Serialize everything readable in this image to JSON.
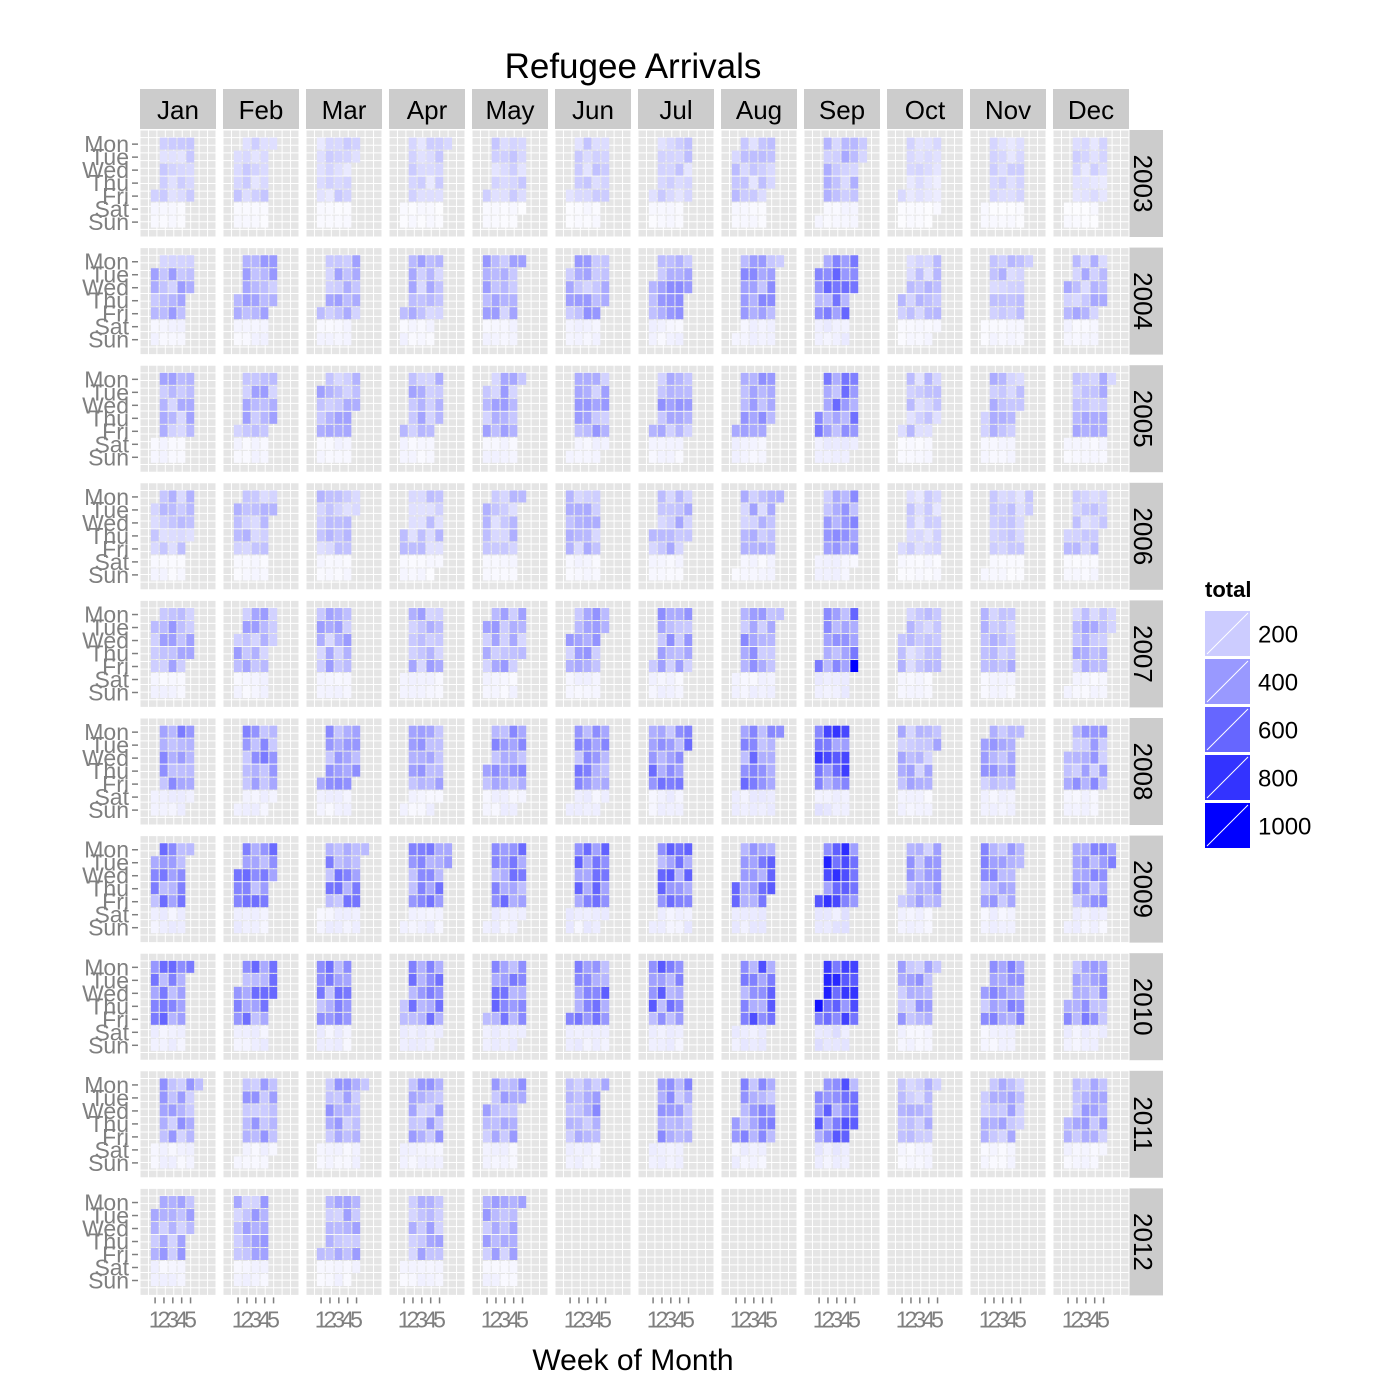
{
  "chart_data": {
    "type": "heatmap",
    "title": "Refugee Arrivals",
    "xlabel": "Week of Month",
    "ylabel": "",
    "x_ticks": [
      "1",
      "2",
      "3",
      "4",
      "5"
    ],
    "y_ticks": [
      "Mon",
      "Tue",
      "Wed",
      "Thu",
      "Fri",
      "Sat",
      "Sun"
    ],
    "months": [
      "Jan",
      "Feb",
      "Mar",
      "Apr",
      "May",
      "Jun",
      "Jul",
      "Aug",
      "Sep",
      "Oct",
      "Nov",
      "Dec"
    ],
    "years": [
      "2003",
      "2004",
      "2005",
      "2006",
      "2007",
      "2008",
      "2009",
      "2010",
      "2011",
      "2012"
    ],
    "data_ends": {
      "year": "2012",
      "month": "May"
    },
    "legend": {
      "title": "total",
      "breaks": [
        200,
        400,
        600,
        800,
        1000
      ],
      "position": "right"
    },
    "color_scale": {
      "low": "#ffffff",
      "high": "#0000ff",
      "limits": [
        0,
        1000
      ]
    },
    "grid": true,
    "approx_level_by_year": {
      "2003": 170,
      "2004": 300,
      "2005": 290,
      "2006": 230,
      "2007": 300,
      "2008": 380,
      "2009": 430,
      "2010": 440,
      "2011": 330,
      "2012": 300
    },
    "approx_level_by_month": {
      "Jan": 0.95,
      "Feb": 0.95,
      "Mar": 0.9,
      "Apr": 0.9,
      "May": 0.95,
      "Jun": 1.0,
      "Jul": 1.05,
      "Aug": 1.1,
      "Sep": 1.45,
      "Oct": 0.7,
      "Nov": 0.8,
      "Dec": 0.85
    },
    "peak_value": {
      "year": "2007",
      "month": "Sep",
      "week": 5,
      "day": "Fri",
      "total": 1000
    }
  },
  "colors": {
    "panel_background": "#e5e5e5",
    "grid": "#ffffff",
    "strip_background": "#cccccc",
    "tick_text": "#7f7f7f",
    "tick_mark": "#7f7f7f"
  }
}
